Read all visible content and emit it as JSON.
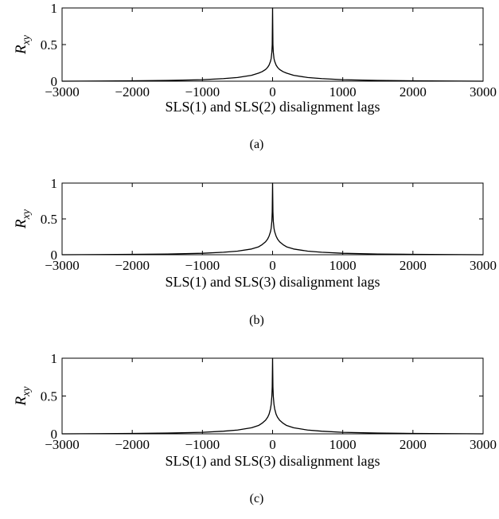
{
  "chart_data": [
    {
      "type": "line",
      "panel_label": "(a)",
      "xlabel": "SLS(1) and SLS(2) disalignment lags",
      "ylabel": {
        "base": "R",
        "subscript": "xy"
      },
      "xlim": [
        -3000,
        3000
      ],
      "ylim": [
        0,
        1
      ],
      "xticks": [
        -3000,
        -2000,
        -1000,
        0,
        1000,
        2000,
        3000
      ],
      "xtick_labels": [
        "−3000",
        "−2000",
        "−1000",
        "0",
        "1000",
        "2000",
        "3000"
      ],
      "yticks": [
        0,
        0.5,
        1
      ],
      "ytick_labels": [
        "0",
        "0.5",
        "1"
      ],
      "grid": false,
      "series": [
        {
          "x": [
            -3000,
            -2000,
            -1500,
            -1000,
            -700,
            -500,
            -300,
            -200,
            -150,
            -100,
            -70,
            -50,
            -30,
            -20,
            -10,
            -5,
            0,
            5,
            10,
            20,
            30,
            50,
            70,
            100,
            150,
            200,
            300,
            500,
            700,
            1000,
            1500,
            2000,
            3000
          ],
          "y": [
            0.0,
            0.005,
            0.01,
            0.02,
            0.035,
            0.05,
            0.08,
            0.11,
            0.13,
            0.16,
            0.19,
            0.22,
            0.27,
            0.31,
            0.4,
            0.5,
            1.0,
            0.5,
            0.4,
            0.31,
            0.27,
            0.22,
            0.19,
            0.16,
            0.13,
            0.11,
            0.08,
            0.05,
            0.035,
            0.02,
            0.01,
            0.005,
            0.0
          ]
        }
      ]
    },
    {
      "type": "line",
      "panel_label": "(b)",
      "xlabel": "SLS(1) and SLS(3) disalignment lags",
      "ylabel": {
        "base": "R",
        "subscript": "xy"
      },
      "xlim": [
        -3000,
        3000
      ],
      "ylim": [
        0,
        1
      ],
      "xticks": [
        -3000,
        -2000,
        -1000,
        0,
        1000,
        2000,
        3000
      ],
      "xtick_labels": [
        "−3000",
        "−2000",
        "−1000",
        "0",
        "1000",
        "2000",
        "3000"
      ],
      "yticks": [
        0,
        0.5,
        1
      ],
      "ytick_labels": [
        "0",
        "0.5",
        "1"
      ],
      "grid": false,
      "series": [
        {
          "x": [
            -3000,
            -2000,
            -1500,
            -1000,
            -700,
            -500,
            -300,
            -200,
            -150,
            -100,
            -70,
            -50,
            -30,
            -20,
            -10,
            -5,
            0,
            5,
            10,
            20,
            30,
            50,
            70,
            100,
            150,
            200,
            300,
            500,
            700,
            1000,
            1500,
            2000,
            3000
          ],
          "y": [
            0.0,
            0.005,
            0.01,
            0.02,
            0.035,
            0.05,
            0.08,
            0.11,
            0.14,
            0.18,
            0.22,
            0.26,
            0.32,
            0.37,
            0.47,
            0.6,
            1.0,
            0.6,
            0.47,
            0.37,
            0.32,
            0.26,
            0.22,
            0.18,
            0.14,
            0.11,
            0.08,
            0.05,
            0.035,
            0.02,
            0.01,
            0.005,
            0.0
          ]
        }
      ]
    },
    {
      "type": "line",
      "panel_label": "(c)",
      "xlabel": "SLS(1) and SLS(3) disalignment lags",
      "ylabel": {
        "base": "R",
        "subscript": "xy"
      },
      "xlim": [
        -3000,
        3000
      ],
      "ylim": [
        0,
        1
      ],
      "xticks": [
        -3000,
        -2000,
        -1000,
        0,
        1000,
        2000,
        3000
      ],
      "xtick_labels": [
        "−3000",
        "−2000",
        "−1000",
        "0",
        "1000",
        "2000",
        "3000"
      ],
      "yticks": [
        0,
        0.5,
        1
      ],
      "ytick_labels": [
        "0",
        "0.5",
        "1"
      ],
      "grid": false,
      "series": [
        {
          "x": [
            -3000,
            -2000,
            -1500,
            -1000,
            -700,
            -500,
            -300,
            -200,
            -150,
            -100,
            -70,
            -50,
            -30,
            -20,
            -10,
            -5,
            0,
            5,
            10,
            20,
            30,
            50,
            70,
            100,
            150,
            200,
            300,
            500,
            700,
            1000,
            1500,
            2000,
            3000
          ],
          "y": [
            0.0,
            0.005,
            0.01,
            0.02,
            0.035,
            0.05,
            0.08,
            0.11,
            0.14,
            0.18,
            0.22,
            0.26,
            0.33,
            0.39,
            0.5,
            0.62,
            1.0,
            0.62,
            0.5,
            0.39,
            0.33,
            0.26,
            0.22,
            0.18,
            0.14,
            0.11,
            0.08,
            0.05,
            0.035,
            0.02,
            0.01,
            0.005,
            0.0
          ]
        }
      ]
    }
  ]
}
